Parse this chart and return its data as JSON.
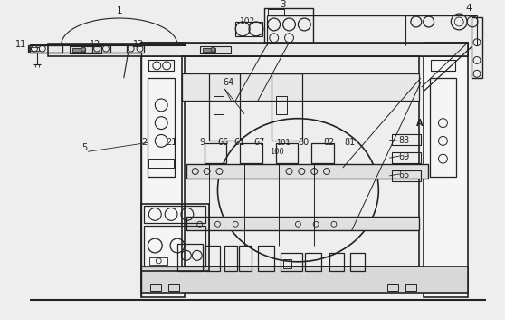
{
  "background_color": "#eeeeee",
  "line_color": "#222222",
  "fill_light": "#d8d8d8",
  "fill_white": "#ffffff",
  "fill_dark": "#555555"
}
